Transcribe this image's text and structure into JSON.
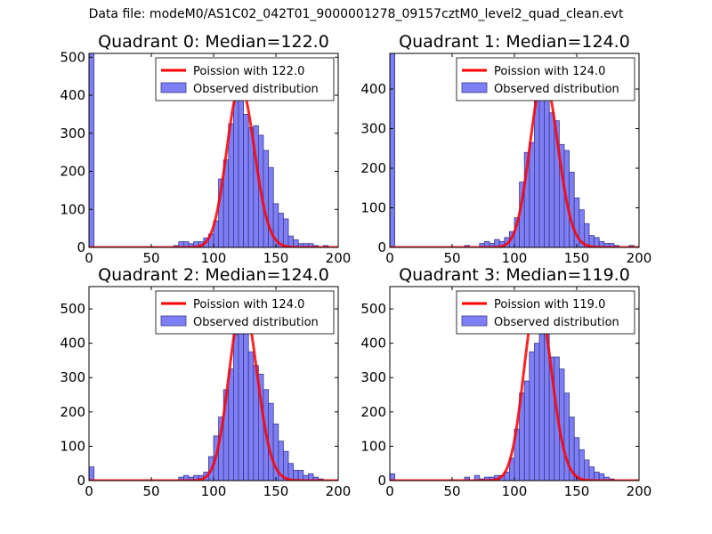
{
  "suptitle": "Data file: modeM0/AS1C02_042T01_9000001278_09157cztM0_level2_quad_clean.evt",
  "colors": {
    "hist_fill": "#7f7ff5",
    "hist_edge": "#3a3a8c",
    "poisson_line": "#ff0000"
  },
  "chart_data": [
    {
      "type": "bar",
      "title": "Quadrant 0: Median=122.0",
      "xlim": [
        0,
        200
      ],
      "ylim": [
        0,
        510
      ],
      "xticks": [
        0,
        50,
        100,
        150,
        200
      ],
      "yticks": [
        0,
        100,
        200,
        300,
        400,
        500
      ],
      "legend": [
        "Poission with 122.0",
        "Observed distribution"
      ],
      "legend_position": "upper-right",
      "poisson_mean": 122.0,
      "poisson_peak": 425,
      "bin_width": 4,
      "bins": [
        [
          0,
          510
        ],
        [
          68,
          5
        ],
        [
          72,
          15
        ],
        [
          76,
          15
        ],
        [
          80,
          10
        ],
        [
          84,
          15
        ],
        [
          88,
          15
        ],
        [
          92,
          25
        ],
        [
          96,
          35
        ],
        [
          100,
          70
        ],
        [
          104,
          180
        ],
        [
          108,
          230
        ],
        [
          112,
          325
        ],
        [
          116,
          395
        ],
        [
          120,
          425
        ],
        [
          124,
          350
        ],
        [
          128,
          315
        ],
        [
          132,
          320
        ],
        [
          136,
          295
        ],
        [
          140,
          255
        ],
        [
          144,
          210
        ],
        [
          148,
          115
        ],
        [
          152,
          90
        ],
        [
          156,
          75
        ],
        [
          160,
          30
        ],
        [
          164,
          20
        ],
        [
          168,
          10
        ],
        [
          172,
          10
        ],
        [
          176,
          10
        ],
        [
          180,
          5
        ],
        [
          188,
          5
        ]
      ]
    },
    {
      "type": "bar",
      "title": "Quadrant 1: Median=124.0",
      "xlim": [
        0,
        200
      ],
      "ylim": [
        0,
        490
      ],
      "xticks": [
        0,
        50,
        100,
        150,
        200
      ],
      "yticks": [
        0,
        100,
        200,
        300,
        400
      ],
      "legend": [
        "Poission with 124.0",
        "Observed distribution"
      ],
      "legend_position": "upper-right",
      "poisson_mean": 124.0,
      "poisson_peak": 430,
      "bin_width": 4,
      "bins": [
        [
          0,
          490
        ],
        [
          60,
          5
        ],
        [
          72,
          10
        ],
        [
          76,
          15
        ],
        [
          80,
          10
        ],
        [
          84,
          20
        ],
        [
          88,
          15
        ],
        [
          92,
          25
        ],
        [
          96,
          40
        ],
        [
          100,
          75
        ],
        [
          104,
          165
        ],
        [
          108,
          240
        ],
        [
          112,
          265
        ],
        [
          116,
          385
        ],
        [
          120,
          430
        ],
        [
          124,
          420
        ],
        [
          128,
          340
        ],
        [
          132,
          320
        ],
        [
          136,
          260
        ],
        [
          140,
          245
        ],
        [
          144,
          190
        ],
        [
          148,
          125
        ],
        [
          152,
          95
        ],
        [
          156,
          60
        ],
        [
          160,
          30
        ],
        [
          164,
          25
        ],
        [
          168,
          15
        ],
        [
          172,
          10
        ],
        [
          176,
          10
        ],
        [
          180,
          5
        ],
        [
          192,
          5
        ]
      ]
    },
    {
      "type": "bar",
      "title": "Quadrant 2: Median=124.0",
      "xlim": [
        0,
        200
      ],
      "ylim": [
        0,
        565
      ],
      "xticks": [
        0,
        50,
        100,
        150,
        200
      ],
      "yticks": [
        0,
        100,
        200,
        300,
        400,
        500
      ],
      "legend": [
        "Poission with 124.0",
        "Observed distribution"
      ],
      "legend_position": "upper-right",
      "poisson_mean": 124.0,
      "poisson_peak": 520,
      "bin_width": 4,
      "bins": [
        [
          0,
          40
        ],
        [
          72,
          10
        ],
        [
          76,
          15
        ],
        [
          80,
          10
        ],
        [
          84,
          15
        ],
        [
          88,
          15
        ],
        [
          92,
          25
        ],
        [
          96,
          70
        ],
        [
          100,
          130
        ],
        [
          104,
          185
        ],
        [
          108,
          265
        ],
        [
          112,
          325
        ],
        [
          116,
          425
        ],
        [
          120,
          450
        ],
        [
          124,
          520
        ],
        [
          128,
          375
        ],
        [
          132,
          335
        ],
        [
          136,
          310
        ],
        [
          140,
          265
        ],
        [
          144,
          225
        ],
        [
          148,
          165
        ],
        [
          152,
          115
        ],
        [
          156,
          85
        ],
        [
          160,
          50
        ],
        [
          164,
          30
        ],
        [
          168,
          30
        ],
        [
          172,
          15
        ],
        [
          176,
          20
        ],
        [
          180,
          10
        ],
        [
          184,
          5
        ]
      ]
    },
    {
      "type": "bar",
      "title": "Quadrant 3: Median=119.0",
      "xlim": [
        0,
        200
      ],
      "ylim": [
        0,
        565
      ],
      "xticks": [
        0,
        50,
        100,
        150,
        200
      ],
      "yticks": [
        0,
        100,
        200,
        300,
        400,
        500
      ],
      "legend": [
        "Poission with 119.0",
        "Observed distribution"
      ],
      "legend_position": "upper-right",
      "poisson_mean": 119.0,
      "poisson_peak": 535,
      "bin_width": 4,
      "bins": [
        [
          0,
          20
        ],
        [
          60,
          10
        ],
        [
          68,
          15
        ],
        [
          72,
          5
        ],
        [
          76,
          10
        ],
        [
          80,
          10
        ],
        [
          84,
          15
        ],
        [
          88,
          15
        ],
        [
          92,
          25
        ],
        [
          96,
          65
        ],
        [
          100,
          150
        ],
        [
          104,
          255
        ],
        [
          108,
          290
        ],
        [
          112,
          375
        ],
        [
          116,
          400
        ],
        [
          120,
          535
        ],
        [
          124,
          460
        ],
        [
          128,
          360
        ],
        [
          132,
          360
        ],
        [
          136,
          325
        ],
        [
          140,
          255
        ],
        [
          144,
          185
        ],
        [
          148,
          125
        ],
        [
          152,
          90
        ],
        [
          156,
          60
        ],
        [
          160,
          40
        ],
        [
          164,
          25
        ],
        [
          168,
          20
        ],
        [
          172,
          10
        ],
        [
          176,
          5
        ]
      ]
    }
  ]
}
